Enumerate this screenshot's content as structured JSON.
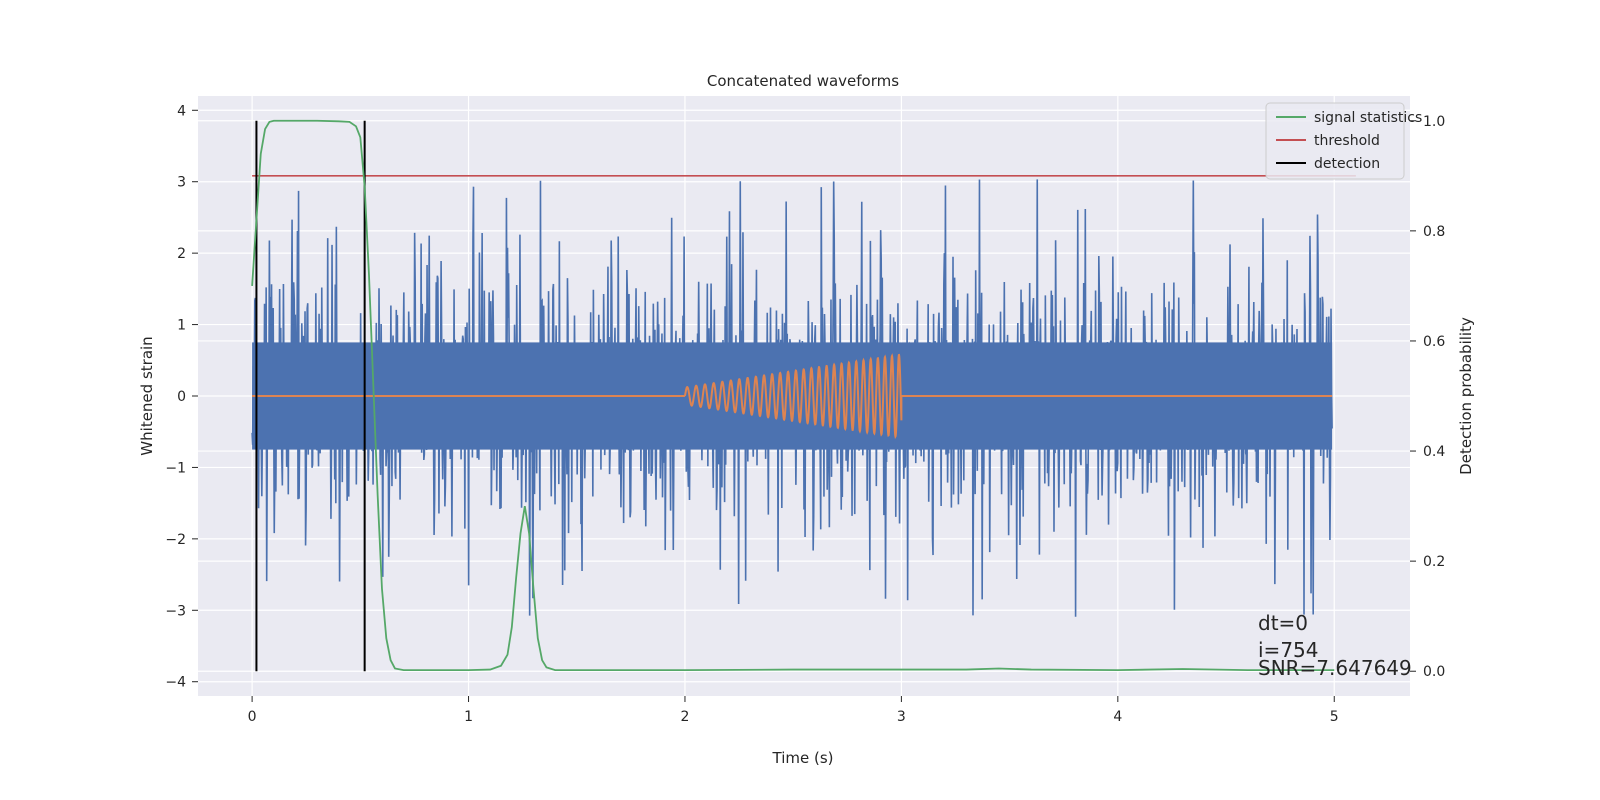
{
  "chart_data": {
    "type": "line",
    "title": "Concatenated waveforms",
    "xlabel": "Time (s)",
    "ylabel_left": "Whitened strain",
    "ylabel_right": "Detection probability",
    "xlim": [
      -0.25,
      5.35
    ],
    "ylim_left": [
      -4.2,
      4.2
    ],
    "ylim_right": [
      -0.045,
      1.045
    ],
    "x_ticks": [
      0,
      1,
      2,
      3,
      4,
      5
    ],
    "x_tick_labels": [
      "0",
      "1",
      "2",
      "3",
      "4",
      "5"
    ],
    "y_left_ticks": [
      4,
      3,
      2,
      1,
      0,
      -1,
      -2,
      -3,
      -4
    ],
    "y_left_tick_labels": [
      "4",
      "3",
      "2",
      "1",
      "0",
      "−1",
      "−2",
      "−3",
      "−4"
    ],
    "y_right_ticks": [
      1.0,
      0.8,
      0.6,
      0.4,
      0.2,
      0.0
    ],
    "y_right_tick_labels": [
      "1.0",
      "0.8",
      "0.6",
      "0.4",
      "0.2",
      "0.0"
    ],
    "grid": true,
    "legend_position": "top-right",
    "colors": {
      "background": "#eaeaf2",
      "grid": "#ffffff",
      "strain": "#4c72b0",
      "injection": "#dd8452",
      "signal_statistics": "#55a868",
      "threshold": "#c44e52",
      "detection": "#000000"
    },
    "legend": [
      "signal statistics",
      "threshold",
      "detection"
    ],
    "strain_noise": {
      "x_start": 0,
      "x_end": 4.99,
      "envelope_y_min": -3.8,
      "envelope_y_max": 3.75,
      "dense_band": [
        -0.75,
        0.75
      ]
    },
    "injection": {
      "x_start": 2.0,
      "x_end": 3.0,
      "amplitude_start": 0.12,
      "amplitude_end": 0.58
    },
    "signal_statistics": {
      "x": [
        0.0,
        0.02,
        0.04,
        0.06,
        0.08,
        0.1,
        0.2,
        0.3,
        0.4,
        0.45,
        0.48,
        0.5,
        0.52,
        0.54,
        0.56,
        0.58,
        0.6,
        0.62,
        0.64,
        0.66,
        0.7,
        0.8,
        1.0,
        1.1,
        1.15,
        1.18,
        1.2,
        1.22,
        1.24,
        1.26,
        1.28,
        1.3,
        1.32,
        1.34,
        1.36,
        1.4,
        1.6,
        2.0,
        2.5,
        3.0,
        3.3,
        3.45,
        3.6,
        4.0,
        4.3,
        4.6,
        5.0
      ],
      "y": [
        0.7,
        0.82,
        0.94,
        0.985,
        0.998,
        1.0,
        1.0,
        1.0,
        0.999,
        0.998,
        0.99,
        0.97,
        0.88,
        0.72,
        0.52,
        0.32,
        0.15,
        0.06,
        0.02,
        0.005,
        0.002,
        0.002,
        0.002,
        0.003,
        0.01,
        0.03,
        0.08,
        0.17,
        0.25,
        0.3,
        0.25,
        0.15,
        0.06,
        0.02,
        0.007,
        0.002,
        0.002,
        0.002,
        0.003,
        0.003,
        0.003,
        0.005,
        0.003,
        0.002,
        0.004,
        0.002,
        0.002
      ]
    },
    "threshold": {
      "x": [
        0,
        5.1
      ],
      "y": 0.9
    },
    "detections": [
      0.02,
      0.52
    ],
    "annotations": [
      "dt=0",
      "i=754",
      "SNR=7.647649"
    ]
  }
}
